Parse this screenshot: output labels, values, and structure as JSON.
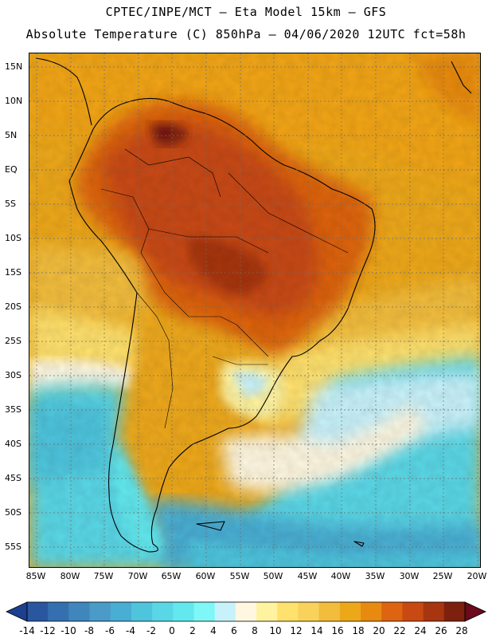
{
  "header": {
    "line1": "CPTEC/INPE/MCT –  Eta Model 15km – GFS",
    "line2": "Absolute Temperature (C) 850hPa – 04/06/2020 12UTC fct=58h"
  },
  "axes": {
    "lat_labels": [
      "15N",
      "10N",
      "5N",
      "EQ",
      "5S",
      "10S",
      "15S",
      "20S",
      "25S",
      "30S",
      "35S",
      "40S",
      "45S",
      "50S",
      "55S"
    ],
    "lon_labels": [
      "85W",
      "80W",
      "75W",
      "70W",
      "65W",
      "60W",
      "55W",
      "50W",
      "45W",
      "40W",
      "35W",
      "30W",
      "25W",
      "20W"
    ]
  },
  "legend": {
    "labels": [
      "-14",
      "-12",
      "-10",
      "-8",
      "-6",
      "-4",
      "-2",
      "0",
      "2",
      "4",
      "6",
      "8",
      "10",
      "12",
      "14",
      "16",
      "18",
      "20",
      "22",
      "24",
      "26",
      "28"
    ],
    "colors": [
      "#1c3f8f",
      "#2a56a0",
      "#3470b0",
      "#3f86bd",
      "#4a9bc8",
      "#48aed3",
      "#4ec4dd",
      "#5ad7e6",
      "#62e8ee",
      "#7ef7f6",
      "#c8f2fb",
      "#fff7e0",
      "#fff3a0",
      "#ffe16d",
      "#f8d25a",
      "#f2bd3c",
      "#eda81a",
      "#e88a10",
      "#dd6410",
      "#c84a12",
      "#a63510",
      "#7e200e",
      "#6a0a1c"
    ]
  }
}
